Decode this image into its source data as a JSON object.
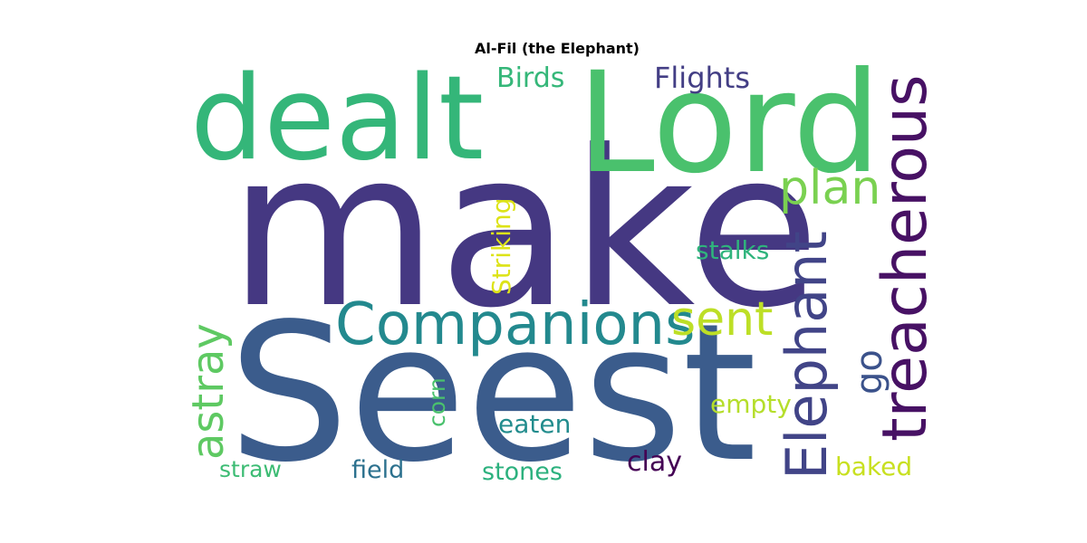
{
  "title": "Al-Fil (the Elephant)",
  "words": [
    {
      "text": "make",
      "color": "#453882",
      "vertical": false
    },
    {
      "text": "Seest",
      "color": "#3b5c8c",
      "vertical": false
    },
    {
      "text": "dealt",
      "color": "#34b679",
      "vertical": false
    },
    {
      "text": "Lord",
      "color": "#4ac16d",
      "vertical": false
    },
    {
      "text": "treacherous",
      "color": "#471164",
      "vertical": true
    },
    {
      "text": "Elephant",
      "color": "#414487",
      "vertical": true
    },
    {
      "text": "Companions",
      "color": "#23898e",
      "vertical": false
    },
    {
      "text": "plan",
      "color": "#7ad151",
      "vertical": false
    },
    {
      "text": "sent",
      "color": "#bddf26",
      "vertical": false
    },
    {
      "text": "astray",
      "color": "#5ec962",
      "vertical": true
    },
    {
      "text": "go",
      "color": "#3b528b",
      "vertical": true
    },
    {
      "text": "Flights",
      "color": "#433e85",
      "vertical": false
    },
    {
      "text": "Birds",
      "color": "#35b779",
      "vertical": false
    },
    {
      "text": "Striking",
      "color": "#dde318",
      "vertical": true
    },
    {
      "text": "stalks",
      "color": "#2fb47c",
      "vertical": false
    },
    {
      "text": "empty",
      "color": "#b5de2b",
      "vertical": false
    },
    {
      "text": "eaten",
      "color": "#228c8d",
      "vertical": false
    },
    {
      "text": "corn",
      "color": "#4ac16d",
      "vertical": true
    },
    {
      "text": "clay",
      "color": "#440154",
      "vertical": false
    },
    {
      "text": "baked",
      "color": "#c8e020",
      "vertical": false
    },
    {
      "text": "straw",
      "color": "#3dbc74",
      "vertical": false
    },
    {
      "text": "field",
      "color": "#2c718e",
      "vertical": false
    },
    {
      "text": "stones",
      "color": "#2cb17e",
      "vertical": false
    }
  ]
}
